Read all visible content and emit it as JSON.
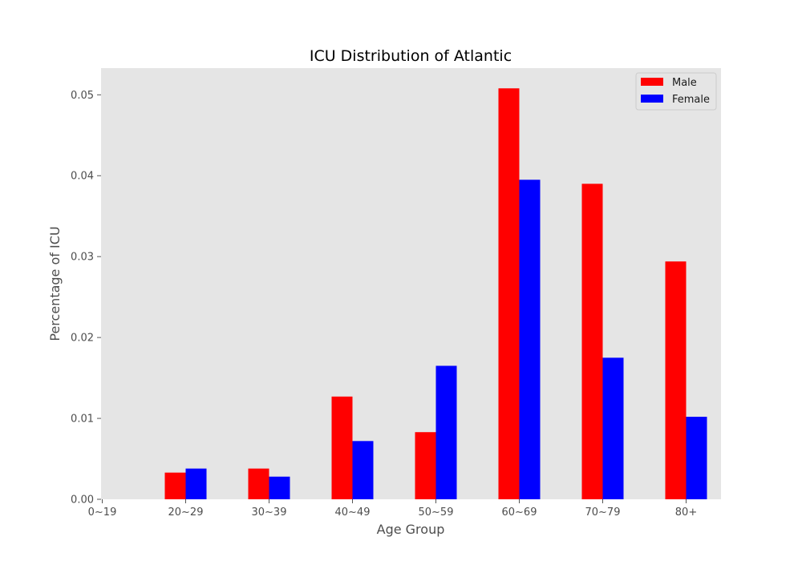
{
  "chart_data": {
    "type": "bar",
    "title": "ICU Distribution of Atlantic",
    "xlabel": "Age Group",
    "ylabel": "Percentage of ICU",
    "categories": [
      "0~19",
      "20~29",
      "30~39",
      "40~49",
      "50~59",
      "60~69",
      "70~79",
      "80+"
    ],
    "series": [
      {
        "name": "Male",
        "color": "#ff0000",
        "values": [
          0.0,
          0.0033,
          0.0038,
          0.0127,
          0.0083,
          0.0508,
          0.039,
          0.0294
        ]
      },
      {
        "name": "Female",
        "color": "#0000ff",
        "values": [
          0.0,
          0.0038,
          0.0028,
          0.0072,
          0.0165,
          0.0395,
          0.0175,
          0.0102
        ]
      }
    ],
    "ylim": [
      0.0,
      0.0533
    ],
    "yticks": [
      "0.00",
      "0.01",
      "0.02",
      "0.03",
      "0.04",
      "0.05"
    ],
    "ytick_values": [
      0.0,
      0.01,
      0.02,
      0.03,
      0.04,
      0.05
    ],
    "grid": false,
    "legend_position": "top-right",
    "plot_background": "#e5e5e5"
  }
}
